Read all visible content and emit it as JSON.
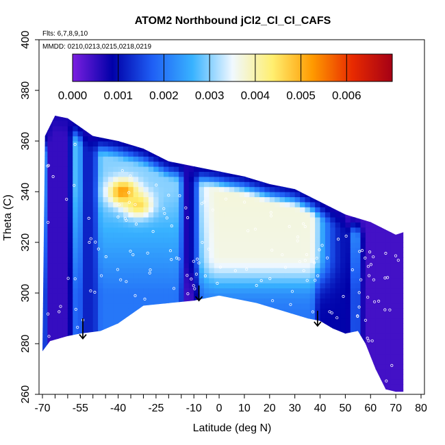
{
  "chart_data": {
    "type": "heatmap",
    "title": "ATOM2 Northbound jCl2_Cl_Cl_CAFS",
    "flights_note": "Flts: 6,7,8,9,10",
    "dates_note": "MMDD: 0210,0213,0215,0218,0219",
    "xlabel": "Latitude (deg N)",
    "ylabel": "Theta (C)",
    "xlim": [
      -70,
      80
    ],
    "ylim": [
      260,
      400
    ],
    "x_ticks_labeled": [
      "-70",
      "-55",
      "-40",
      "-25",
      "-10",
      "0",
      "10",
      "20",
      "30",
      "40",
      "50",
      "60",
      "70",
      "80"
    ],
    "x_ticks_minor": [
      -65,
      -60,
      -50,
      -45,
      -35,
      -30,
      -20,
      -15,
      -5
    ],
    "y_ticks": [
      "260",
      "280",
      "300",
      "320",
      "340",
      "360",
      "380",
      "400"
    ],
    "colorbar": {
      "labels": [
        "0.000",
        "0.001",
        "0.002",
        "0.003",
        "0.004",
        "0.005",
        "0.006"
      ],
      "range": [
        0.0,
        0.007
      ],
      "colors": [
        "#7b1fe0",
        "#0000a8",
        "#1f5ff5",
        "#38b2ff",
        "#f0f8ff",
        "#ffef70",
        "#ff9a00",
        "#e82a00",
        "#a50015"
      ]
    },
    "envelope": {
      "top": [
        [
          -69,
          362
        ],
        [
          -65,
          370
        ],
        [
          -60,
          369
        ],
        [
          -50,
          362
        ],
        [
          -40,
          360
        ],
        [
          -30,
          357
        ],
        [
          -20,
          352
        ],
        [
          -10,
          350
        ],
        [
          0,
          348
        ],
        [
          10,
          346
        ],
        [
          20,
          343
        ],
        [
          30,
          341
        ],
        [
          40,
          336
        ],
        [
          50,
          331
        ],
        [
          60,
          328
        ],
        [
          70,
          323
        ],
        [
          73,
          324
        ]
      ],
      "bottom": [
        [
          -70,
          277
        ],
        [
          -67,
          281
        ],
        [
          -60,
          283
        ],
        [
          -55,
          284
        ],
        [
          -47,
          285
        ],
        [
          -40,
          288
        ],
        [
          -30,
          295
        ],
        [
          -20,
          296
        ],
        [
          -10,
          297
        ],
        [
          -5,
          298
        ],
        [
          0,
          299
        ],
        [
          5,
          298
        ],
        [
          15,
          296
        ],
        [
          25,
          293
        ],
        [
          35,
          290
        ],
        [
          40,
          289
        ],
        [
          45,
          286
        ],
        [
          50,
          284
        ],
        [
          55,
          285
        ],
        [
          58,
          280
        ],
        [
          62,
          270
        ],
        [
          66,
          262
        ],
        [
          70,
          261
        ],
        [
          73,
          261
        ]
      ]
    },
    "field_features": [
      {
        "kind": "band",
        "x": [
          -67,
          -60
        ],
        "value": 0.0005
      },
      {
        "kind": "band",
        "x": [
          -53,
          -50
        ],
        "value": 0.0012
      },
      {
        "kind": "band",
        "x": [
          -13,
          -10
        ],
        "value": 0.0004
      },
      {
        "kind": "band",
        "x": [
          40,
          50
        ],
        "value": 0.0009
      },
      {
        "kind": "band",
        "x": [
          58,
          73
        ],
        "value": 0.0007
      },
      {
        "kind": "maximum",
        "x": -38,
        "y": 340,
        "value": 0.0053
      },
      {
        "kind": "maximum",
        "x": -32,
        "y": 335,
        "value": 0.0046
      },
      {
        "kind": "plateau",
        "x": [
          0,
          35
        ],
        "y": [
          315,
          345
        ],
        "value": 0.0038
      }
    ],
    "arrows": [
      {
        "x": -54,
        "y_from": 290,
        "y_to": 282
      },
      {
        "x": -8,
        "y_from": 303,
        "y_to": 297
      },
      {
        "x": 39,
        "y_from": 293,
        "y_to": 287
      }
    ]
  }
}
